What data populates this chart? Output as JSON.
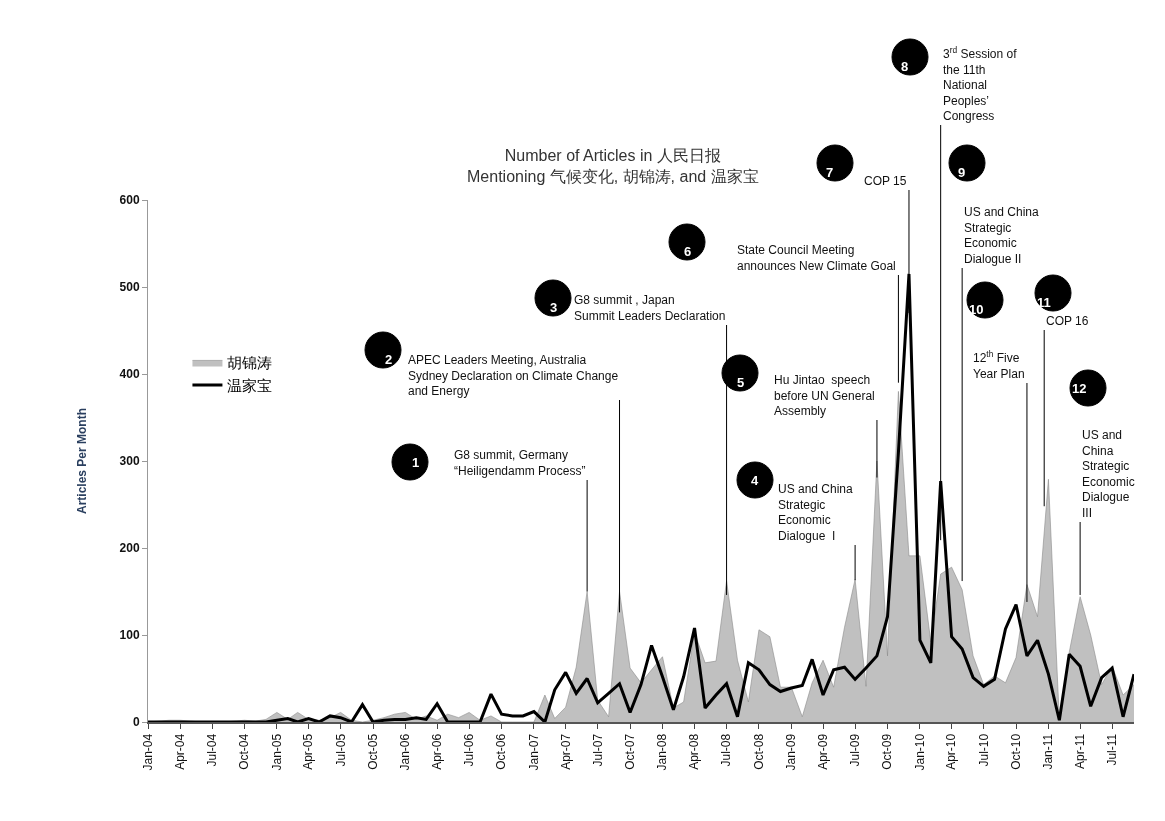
{
  "chart_data": {
    "type": "area",
    "title": "Number of Articles in 人民日报\nMentioning 气候变化, 胡锦涛, and 温家宝",
    "ylabel": "Articles Per Month",
    "x": [
      "2004-01",
      "2004-02",
      "2004-03",
      "2004-04",
      "2004-05",
      "2004-06",
      "2004-07",
      "2004-08",
      "2004-09",
      "2004-10",
      "2004-11",
      "2004-12",
      "2005-01",
      "2005-02",
      "2005-03",
      "2005-04",
      "2005-05",
      "2005-06",
      "2005-07",
      "2005-08",
      "2005-09",
      "2005-10",
      "2005-11",
      "2005-12",
      "2006-01",
      "2006-02",
      "2006-03",
      "2006-04",
      "2006-05",
      "2006-06",
      "2006-07",
      "2006-08",
      "2006-09",
      "2006-10",
      "2006-11",
      "2006-12",
      "2007-01",
      "2007-02",
      "2007-03",
      "2007-04",
      "2007-05",
      "2007-06",
      "2007-07",
      "2007-08",
      "2007-09",
      "2007-10",
      "2007-11",
      "2007-12",
      "2008-01",
      "2008-02",
      "2008-03",
      "2008-04",
      "2008-05",
      "2008-06",
      "2008-07",
      "2008-08",
      "2008-09",
      "2008-10",
      "2008-11",
      "2008-12",
      "2009-01",
      "2009-02",
      "2009-03",
      "2009-04",
      "2009-05",
      "2009-06",
      "2009-07",
      "2009-08",
      "2009-09",
      "2009-10",
      "2009-11",
      "2009-12",
      "2010-01",
      "2010-02",
      "2010-03",
      "2010-04",
      "2010-05",
      "2010-06",
      "2010-07",
      "2010-08",
      "2010-09",
      "2010-10",
      "2010-11",
      "2010-12",
      "2011-01",
      "2011-02",
      "2011-03",
      "2011-04",
      "2011-05",
      "2011-06",
      "2011-07",
      "2011-08",
      "2011-09"
    ],
    "series": [
      {
        "name": "胡锦涛",
        "color": "#c0c0c0",
        "values": [
          0,
          1,
          2,
          2,
          1,
          0,
          0,
          0,
          1,
          2,
          1,
          3,
          11,
          3,
          11,
          3,
          2,
          5,
          11,
          2,
          0,
          2,
          5,
          9,
          11,
          3,
          7,
          2,
          9,
          5,
          11,
          2,
          7,
          0,
          0,
          0,
          0,
          31,
          4,
          17,
          63,
          150,
          25,
          6,
          150,
          62,
          45,
          60,
          75,
          16,
          23,
          103,
          68,
          70,
          162,
          71,
          23,
          106,
          98,
          40,
          40,
          6,
          45,
          71,
          40,
          109,
          164,
          41,
          300,
          76,
          380,
          191,
          191,
          92,
          170,
          178,
          152,
          76,
          43,
          53,
          45,
          74,
          158,
          121,
          279,
          2,
          80,
          144,
          100,
          43,
          64,
          31,
          43
        ]
      },
      {
        "name": "温家宝",
        "type": "line",
        "color": "#000000",
        "values": [
          0,
          0,
          0,
          0,
          0,
          0,
          0,
          0,
          0,
          0,
          0,
          0,
          2,
          4,
          0,
          4,
          0,
          7,
          5,
          0,
          20,
          0,
          2,
          3,
          3,
          5,
          3,
          21,
          0,
          0,
          0,
          0,
          32,
          9,
          7,
          7,
          12,
          0,
          37,
          57,
          33,
          50,
          22,
          33,
          44,
          11,
          43,
          88,
          52,
          14,
          52,
          108,
          16,
          31,
          44,
          6,
          68,
          60,
          43,
          35,
          39,
          42,
          72,
          31,
          60,
          63,
          49,
          62,
          76,
          121,
          310,
          515,
          94,
          68,
          277,
          98,
          84,
          51,
          41,
          49,
          107,
          135,
          76,
          94,
          55,
          2,
          78,
          64,
          18,
          51,
          62,
          6,
          55
        ]
      }
    ],
    "xlim": [
      "2004-01",
      "2011-09"
    ],
    "xticks": [
      {
        "value": "2004-01",
        "label": "Jan-04"
      },
      {
        "value": "2004-04",
        "label": "Apr-04"
      },
      {
        "value": "2004-07",
        "label": "Jul-04"
      },
      {
        "value": "2004-10",
        "label": "Oct-04"
      },
      {
        "value": "2005-01",
        "label": "Jan-05"
      },
      {
        "value": "2005-04",
        "label": "Apr-05"
      },
      {
        "value": "2005-07",
        "label": "Jul-05"
      },
      {
        "value": "2005-10",
        "label": "Oct-05"
      },
      {
        "value": "2006-01",
        "label": "Jan-06"
      },
      {
        "value": "2006-04",
        "label": "Apr-06"
      },
      {
        "value": "2006-07",
        "label": "Jul-06"
      },
      {
        "value": "2006-10",
        "label": "Oct-06"
      },
      {
        "value": "2007-01",
        "label": "Jan-07"
      },
      {
        "value": "2007-04",
        "label": "Apr-07"
      },
      {
        "value": "2007-07",
        "label": "Jul-07"
      },
      {
        "value": "2007-10",
        "label": "Oct-07"
      },
      {
        "value": "2008-01",
        "label": "Jan-08"
      },
      {
        "value": "2008-04",
        "label": "Apr-08"
      },
      {
        "value": "2008-07",
        "label": "Jul-08"
      },
      {
        "value": "2008-10",
        "label": "Oct-08"
      },
      {
        "value": "2009-01",
        "label": "Jan-09"
      },
      {
        "value": "2009-04",
        "label": "Apr-09"
      },
      {
        "value": "2009-07",
        "label": "Jul-09"
      },
      {
        "value": "2009-10",
        "label": "Oct-09"
      },
      {
        "value": "2010-01",
        "label": "Jan-10"
      },
      {
        "value": "2010-04",
        "label": "Apr-10"
      },
      {
        "value": "2010-07",
        "label": "Jul-10"
      },
      {
        "value": "2010-10",
        "label": "Oct-10"
      },
      {
        "value": "2011-01",
        "label": "Jan-11"
      },
      {
        "value": "2011-04",
        "label": "Apr-11"
      },
      {
        "value": "2011-07",
        "label": "Jul-11"
      }
    ],
    "ylim": [
      0,
      600
    ],
    "yticks": [
      0,
      100,
      200,
      300,
      400,
      500,
      600
    ],
    "legend": "left",
    "annotations": [
      "1",
      {
        "text": "G8 summit, Germany\n“Heiligendamm Process”",
        "x": "2007-06",
        "y": 150
      },
      "2",
      {
        "text": "APEC Leaders Meeting, Australia\nSydney Declaration on Climate Change\nand Energy",
        "x": "2007-09",
        "y": 126
      },
      "3",
      {
        "text": "G8 summit , Japan\nSummit Leaders Declaration",
        "x": "2008-07",
        "y": 146
      },
      "4",
      {
        "text": "US and China\nStrategic\nEconomic\nDialogue  I",
        "x": "2009-07",
        "y": 163
      },
      "5",
      {
        "text": "Hu Jintao  speech\nbefore UN General\nAssembly",
        "x": "2009-09",
        "y": 281
      },
      "6",
      {
        "text": "State Council Meeting\nannounces New Climate Goal",
        "x": "2009-11",
        "y": 390
      },
      "7",
      {
        "text": "COP 15",
        "x": "2009-12",
        "y": 470
      },
      "8",
      {
        "text": "3$^{rd}$ Session of\nthe 11th\nNational\nPeoples’\nCongress",
        "x": "2010-03",
        "y": 209
      },
      "9",
      {
        "text": "US and China\nStrategic\nEconomic\nDialogue II",
        "x": "2010-05",
        "y": 162
      },
      "10",
      {
        "text": "12$^{th}$ Five\nYear Plan",
        "x": "2010-11",
        "y": 138
      },
      "11",
      {
        "text": "COP 16",
        "x": "2010-12-20",
        "y": 248
      },
      "12",
      {
        "text": "US and\nChina\nStrategic\nEconomic\nDialogue\nIII",
        "x": "2011-04",
        "y": 146
      }
    ]
  }
}
